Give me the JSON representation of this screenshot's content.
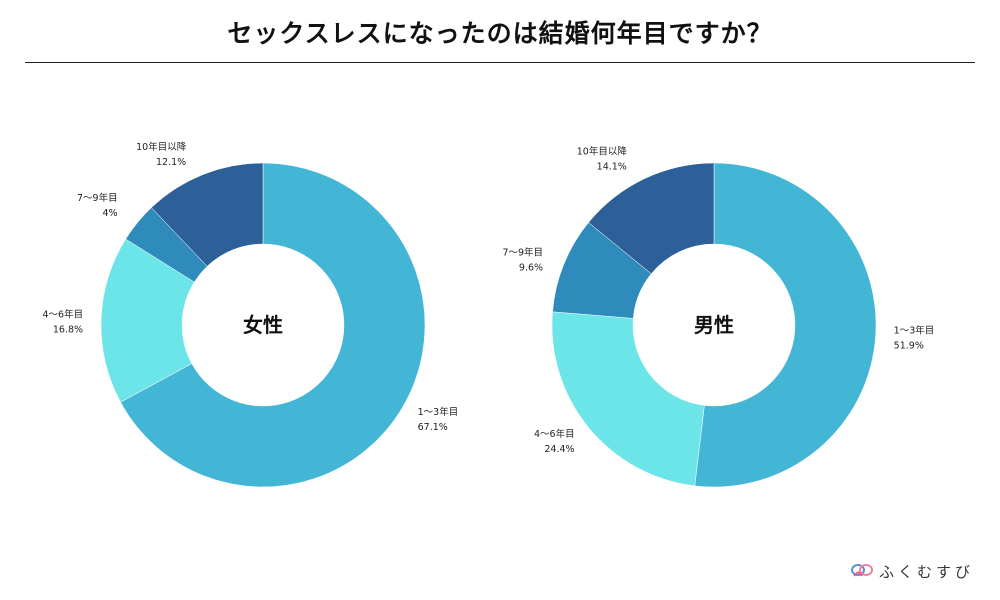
{
  "title": "セックスレスになったのは結婚何年目ですか？",
  "brand": {
    "name": "ふくむすび",
    "logo_icon": "knot-logo-icon"
  },
  "chart_data": [
    {
      "type": "pie",
      "donut": true,
      "center_label": "女性",
      "slices": [
        {
          "label": "1〜3年目",
          "value": 67.1,
          "value_text": "67.1%",
          "color": "#43B6D6"
        },
        {
          "label": "4〜6年目",
          "value": 16.8,
          "value_text": "16.8%",
          "color": "#6CE5E8"
        },
        {
          "label": "7〜9年目",
          "value": 4,
          "value_text": "4%",
          "color": "#2E8BBC"
        },
        {
          "label": "10年目以降",
          "value": 12.1,
          "value_text": "12.1%",
          "color": "#2D5F98"
        }
      ]
    },
    {
      "type": "pie",
      "donut": true,
      "center_label": "男性",
      "slices": [
        {
          "label": "1〜3年目",
          "value": 51.9,
          "value_text": "51.9%",
          "color": "#43B6D6"
        },
        {
          "label": "4〜6年目",
          "value": 24.4,
          "value_text": "24.4%",
          "color": "#6CE5E8"
        },
        {
          "label": "7〜9年目",
          "value": 9.6,
          "value_text": "9.6%",
          "color": "#2E8BBC"
        },
        {
          "label": "10年目以降",
          "value": 14.1,
          "value_text": "14.1%",
          "color": "#2D5F98"
        }
      ]
    }
  ]
}
